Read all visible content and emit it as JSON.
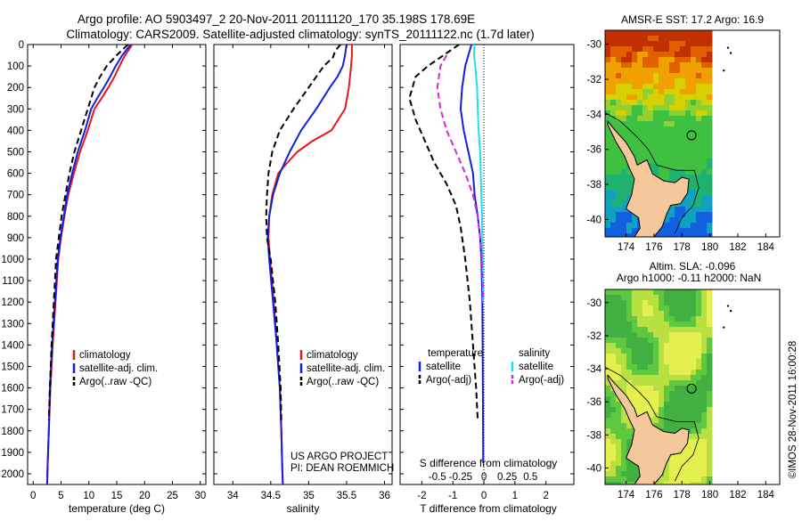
{
  "header": {
    "title_line1": "Argo profile: AO 5903497_2 20-Nov-2011 20111120_170 35.198S 178.69E",
    "title_line2": "Climatology: CARS2009. Satellite-adjusted climatology: synTS_20111122.nc (1.7d later)"
  },
  "colors": {
    "climatology": "#e8141e",
    "satellite": "#1020e0",
    "argo": "#000000",
    "salinity_sat": "#20e0f0",
    "salinity_argo": "#e020e0",
    "land": "#f4c89a"
  },
  "chart_data": [
    {
      "type": "line",
      "name_id": "temperature-panel",
      "xlabel": "temperature (deg C)",
      "xlim": [
        -1,
        31
      ],
      "ylim": [
        2050,
        0
      ],
      "y_reversed": true,
      "xticks": [
        0,
        5,
        10,
        15,
        20,
        25,
        30
      ],
      "yticks": [
        0,
        100,
        200,
        300,
        400,
        500,
        600,
        700,
        800,
        900,
        1000,
        1100,
        1200,
        1300,
        1400,
        1500,
        1600,
        1700,
        1800,
        1900,
        2000
      ],
      "series": [
        {
          "name": "climatology",
          "color": "#e8141e",
          "dash": "",
          "x": [
            17.8,
            16.5,
            15.5,
            14.6,
            13.5,
            12.3,
            11.0,
            9.8,
            8.4,
            7.3,
            6.3,
            5.6,
            5.0,
            4.5,
            4.0,
            3.5,
            3.1,
            2.8,
            2.6,
            2.5
          ],
          "y": [
            0,
            50,
            100,
            150,
            200,
            250,
            300,
            400,
            500,
            600,
            700,
            800,
            900,
            1000,
            1200,
            1400,
            1600,
            1800,
            1950,
            2050
          ]
        },
        {
          "name": "satellite-adj. clim.",
          "color": "#1020e0",
          "dash": "",
          "x": [
            17.5,
            16.0,
            14.8,
            13.8,
            12.7,
            11.5,
            10.4,
            9.3,
            8.0,
            7.0,
            6.1,
            5.5,
            4.9,
            4.4,
            3.9,
            3.4,
            3.0,
            2.8,
            2.6,
            2.5
          ],
          "y": [
            0,
            50,
            100,
            150,
            200,
            250,
            300,
            400,
            500,
            600,
            700,
            800,
            900,
            1000,
            1200,
            1400,
            1600,
            1800,
            1950,
            2050
          ]
        },
        {
          "name": "Argo(..raw -QC)",
          "color": "#000000",
          "dash": "7,4",
          "x": [
            17.0,
            15.0,
            13.2,
            12.0,
            11.0,
            9.8,
            8.6,
            7.4,
            6.5,
            5.8,
            5.1,
            4.6,
            4.1,
            3.7,
            3.3,
            3.0,
            2.8
          ],
          "y": [
            0,
            50,
            100,
            150,
            200,
            300,
            400,
            500,
            600,
            700,
            800,
            900,
            1000,
            1200,
            1400,
            1600,
            1750
          ]
        }
      ],
      "legend": [
        "climatology",
        "satellite-adj. clim.",
        "Argo(..raw -QC)"
      ]
    },
    {
      "type": "line",
      "name_id": "salinity-panel",
      "xlabel": "salinity",
      "xlim": [
        33.75,
        36.1
      ],
      "ylim": [
        2050,
        0
      ],
      "y_reversed": true,
      "xticks": [
        34,
        34.5,
        35,
        35.5,
        36
      ],
      "series": [
        {
          "name": "climatology",
          "color": "#e8141e",
          "dash": "",
          "x": [
            35.57,
            35.57,
            35.56,
            35.53,
            35.48,
            35.3,
            35.05,
            34.85,
            34.72,
            34.6,
            34.52,
            34.48,
            34.47,
            34.49,
            34.54,
            34.58,
            34.62,
            34.64,
            34.65,
            34.66
          ],
          "y": [
            0,
            50,
            100,
            200,
            300,
            400,
            450,
            500,
            550,
            600,
            700,
            800,
            900,
            1000,
            1200,
            1400,
            1600,
            1800,
            1950,
            2050
          ]
        },
        {
          "name": "satellite-adj. clim.",
          "color": "#1020e0",
          "dash": "",
          "x": [
            35.5,
            35.48,
            35.45,
            35.38,
            35.28,
            35.1,
            34.9,
            34.75,
            34.62,
            34.53,
            34.48,
            34.46,
            34.48,
            34.53,
            34.58,
            34.62,
            34.64,
            34.65,
            34.66
          ],
          "y": [
            0,
            50,
            100,
            150,
            200,
            300,
            400,
            500,
            600,
            700,
            800,
            900,
            1000,
            1200,
            1400,
            1600,
            1800,
            1950,
            2050
          ]
        },
        {
          "name": "Argo(..raw -QC)",
          "color": "#000000",
          "dash": "7,4",
          "x": [
            35.42,
            35.35,
            35.32,
            35.2,
            35.0,
            34.8,
            34.62,
            34.52,
            34.47,
            34.45,
            34.44,
            34.45,
            34.5,
            34.56,
            34.6,
            34.63,
            34.64
          ],
          "y": [
            0,
            30,
            60,
            100,
            200,
            300,
            400,
            500,
            600,
            700,
            800,
            900,
            1000,
            1200,
            1400,
            1600,
            1750
          ]
        }
      ],
      "legend": [
        "climatology",
        "satellite-adj. clim.",
        "Argo(..raw -QC)"
      ],
      "annotation_line1": "US ARGO PROJECT",
      "annotation_line2": "PI: DEAN ROEMMICH"
    },
    {
      "type": "line",
      "name_id": "difference-panel",
      "xlabel": "T difference from climatology",
      "xlabel_top": "S difference from climatology",
      "xlim": [
        -2.7,
        2.9
      ],
      "ylim": [
        2050,
        0
      ],
      "y_reversed": true,
      "xticks_T": [
        -2,
        -1,
        0,
        1,
        2
      ],
      "xticks_S_labels": [
        "-0.5",
        "-0.25",
        "0",
        "0.25",
        "0.5"
      ],
      "xticks_S_pos": [
        -2,
        -1,
        0,
        1,
        2
      ],
      "series": [
        {
          "name": "temperature satellite",
          "color": "#1020e0",
          "dash": "",
          "x": [
            -0.4,
            -0.5,
            -0.6,
            -0.7,
            -0.75,
            -0.65,
            -0.5,
            -0.35,
            -0.3,
            -0.2,
            -0.12,
            -0.08,
            -0.05,
            -0.04,
            -0.03,
            -0.02
          ],
          "y": [
            0,
            50,
            100,
            200,
            300,
            400,
            500,
            600,
            700,
            800,
            900,
            1000,
            1200,
            1400,
            1700,
            1950
          ]
        },
        {
          "name": "temperature Argo(-adj)",
          "color": "#000000",
          "dash": "7,4",
          "x": [
            -0.8,
            -1.3,
            -1.8,
            -2.2,
            -2.4,
            -2.2,
            -1.9,
            -1.6,
            -1.2,
            -0.9,
            -0.75,
            -0.6,
            -0.45,
            -0.35,
            -0.25,
            -0.2
          ],
          "y": [
            0,
            50,
            100,
            150,
            250,
            350,
            450,
            550,
            650,
            750,
            850,
            1000,
            1200,
            1400,
            1600,
            1750
          ]
        },
        {
          "name": "salinity satellite",
          "color": "#20e0f0",
          "dash": "",
          "x": [
            -0.3,
            -0.32,
            -0.28,
            -0.22,
            -0.2,
            -0.17,
            -0.12,
            -0.1,
            -0.08,
            -0.06,
            -0.04,
            -0.02
          ],
          "y": [
            0,
            50,
            100,
            200,
            300,
            400,
            500,
            600,
            700,
            800,
            1000,
            1200
          ]
        },
        {
          "name": "salinity Argo(-adj)",
          "color": "#e020e0",
          "dash": "7,4",
          "x": [
            -1.2,
            -1.4,
            -1.5,
            -1.4,
            -1.2,
            -0.9,
            -0.6,
            -0.35,
            -0.2,
            -0.12,
            -0.06,
            -0.02
          ],
          "y": [
            50,
            100,
            200,
            300,
            400,
            500,
            600,
            700,
            800,
            900,
            1000,
            1200
          ]
        }
      ],
      "legend_left_title": "temperature",
      "legend_right_title": "salinity",
      "legend_left": [
        "satellite",
        "Argo(-adj)"
      ],
      "legend_right": [
        "satellite",
        "Argo(-adj)"
      ]
    }
  ],
  "maps": {
    "sst_title": "AMSR-E SST: 17.2 Argo: 16.9",
    "sla_title_line1": "Altim. SLA: -0.096",
    "sla_title_line2": "Argo h1000: -0.11 h2000: NaN",
    "x_ticks": [
      "174",
      "176",
      "178",
      "180",
      "182",
      "184"
    ],
    "y_ticks": [
      "-30",
      "-32",
      "-34",
      "-36",
      "-38",
      "-40"
    ],
    "float_position": {
      "lon": 178.69,
      "lat": -35.198
    }
  },
  "credit": "©IMOS 28-Nov-2011 16:00:28"
}
